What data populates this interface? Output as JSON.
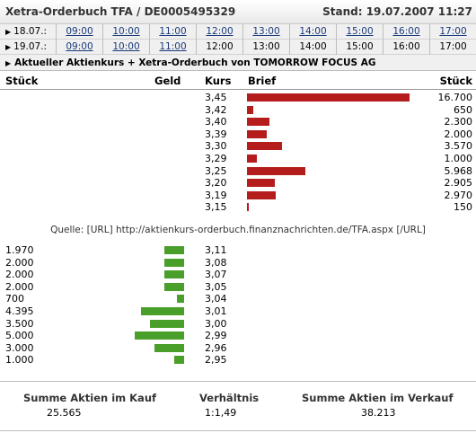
{
  "header": {
    "title": "Xetra-Orderbuch TFA / DE0005495329",
    "stand": "Stand: 19.07.2007 11:27"
  },
  "timerows": [
    {
      "date": "18.07.:",
      "times": [
        "09:00",
        "10:00",
        "11:00",
        "12:00",
        "13:00",
        "14:00",
        "15:00",
        "16:00",
        "17:00"
      ],
      "links": [
        true,
        true,
        true,
        true,
        true,
        true,
        true,
        true,
        true
      ]
    },
    {
      "date": "19.07.:",
      "times": [
        "09:00",
        "10:00",
        "11:00",
        "12:00",
        "13:00",
        "14:00",
        "15:00",
        "16:00",
        "17:00"
      ],
      "links": [
        true,
        true,
        true,
        false,
        false,
        false,
        false,
        false,
        false
      ]
    }
  ],
  "subhead": "Aktueller Aktienkurs + Xetra-Orderbuch von TOMORROW FOCUS AG",
  "columns": {
    "stueck_left": "Stück",
    "geld": "Geld",
    "kurs": "Kurs",
    "brief": "Brief",
    "stueck_right": "Stück"
  },
  "asks": [
    {
      "kurs": "3,45",
      "stueck": "16.700",
      "value": 16700
    },
    {
      "kurs": "3,42",
      "stueck": "650",
      "value": 650
    },
    {
      "kurs": "3,40",
      "stueck": "2.300",
      "value": 2300
    },
    {
      "kurs": "3,39",
      "stueck": "2.000",
      "value": 2000
    },
    {
      "kurs": "3,30",
      "stueck": "3.570",
      "value": 3570
    },
    {
      "kurs": "3,29",
      "stueck": "1.000",
      "value": 1000
    },
    {
      "kurs": "3,25",
      "stueck": "5.968",
      "value": 5968
    },
    {
      "kurs": "3,20",
      "stueck": "2.905",
      "value": 2905
    },
    {
      "kurs": "3,19",
      "stueck": "2.970",
      "value": 2970
    },
    {
      "kurs": "3,15",
      "stueck": "150",
      "value": 150
    }
  ],
  "source": "Quelle: [URL] http://aktienkurs-orderbuch.finanznachrichten.de/TFA.aspx [/URL]",
  "bids": [
    {
      "kurs": "3,11",
      "stueck": "1.970",
      "value": 1970
    },
    {
      "kurs": "3,08",
      "stueck": "2.000",
      "value": 2000
    },
    {
      "kurs": "3,07",
      "stueck": "2.000",
      "value": 2000
    },
    {
      "kurs": "3,05",
      "stueck": "2.000",
      "value": 2000
    },
    {
      "kurs": "3,04",
      "stueck": "700",
      "value": 700
    },
    {
      "kurs": "3,01",
      "stueck": "4.395",
      "value": 4395
    },
    {
      "kurs": "3,00",
      "stueck": "3.500",
      "value": 3500
    },
    {
      "kurs": "2,99",
      "stueck": "5.000",
      "value": 5000
    },
    {
      "kurs": "2,96",
      "stueck": "3.000",
      "value": 3000
    },
    {
      "kurs": "2,95",
      "stueck": "1.000",
      "value": 1000
    }
  ],
  "summary": {
    "kauf_label": "Summe Aktien im Kauf",
    "kauf_value": "25.565",
    "verh_label": "Verhältnis",
    "verh_value": "1:1,49",
    "verkauf_label": "Summe Aktien im Verkauf",
    "verkauf_value": "38.213"
  },
  "colors": {
    "ask_bar": "#b51c1c",
    "bid_bar": "#4a9f2b"
  }
}
